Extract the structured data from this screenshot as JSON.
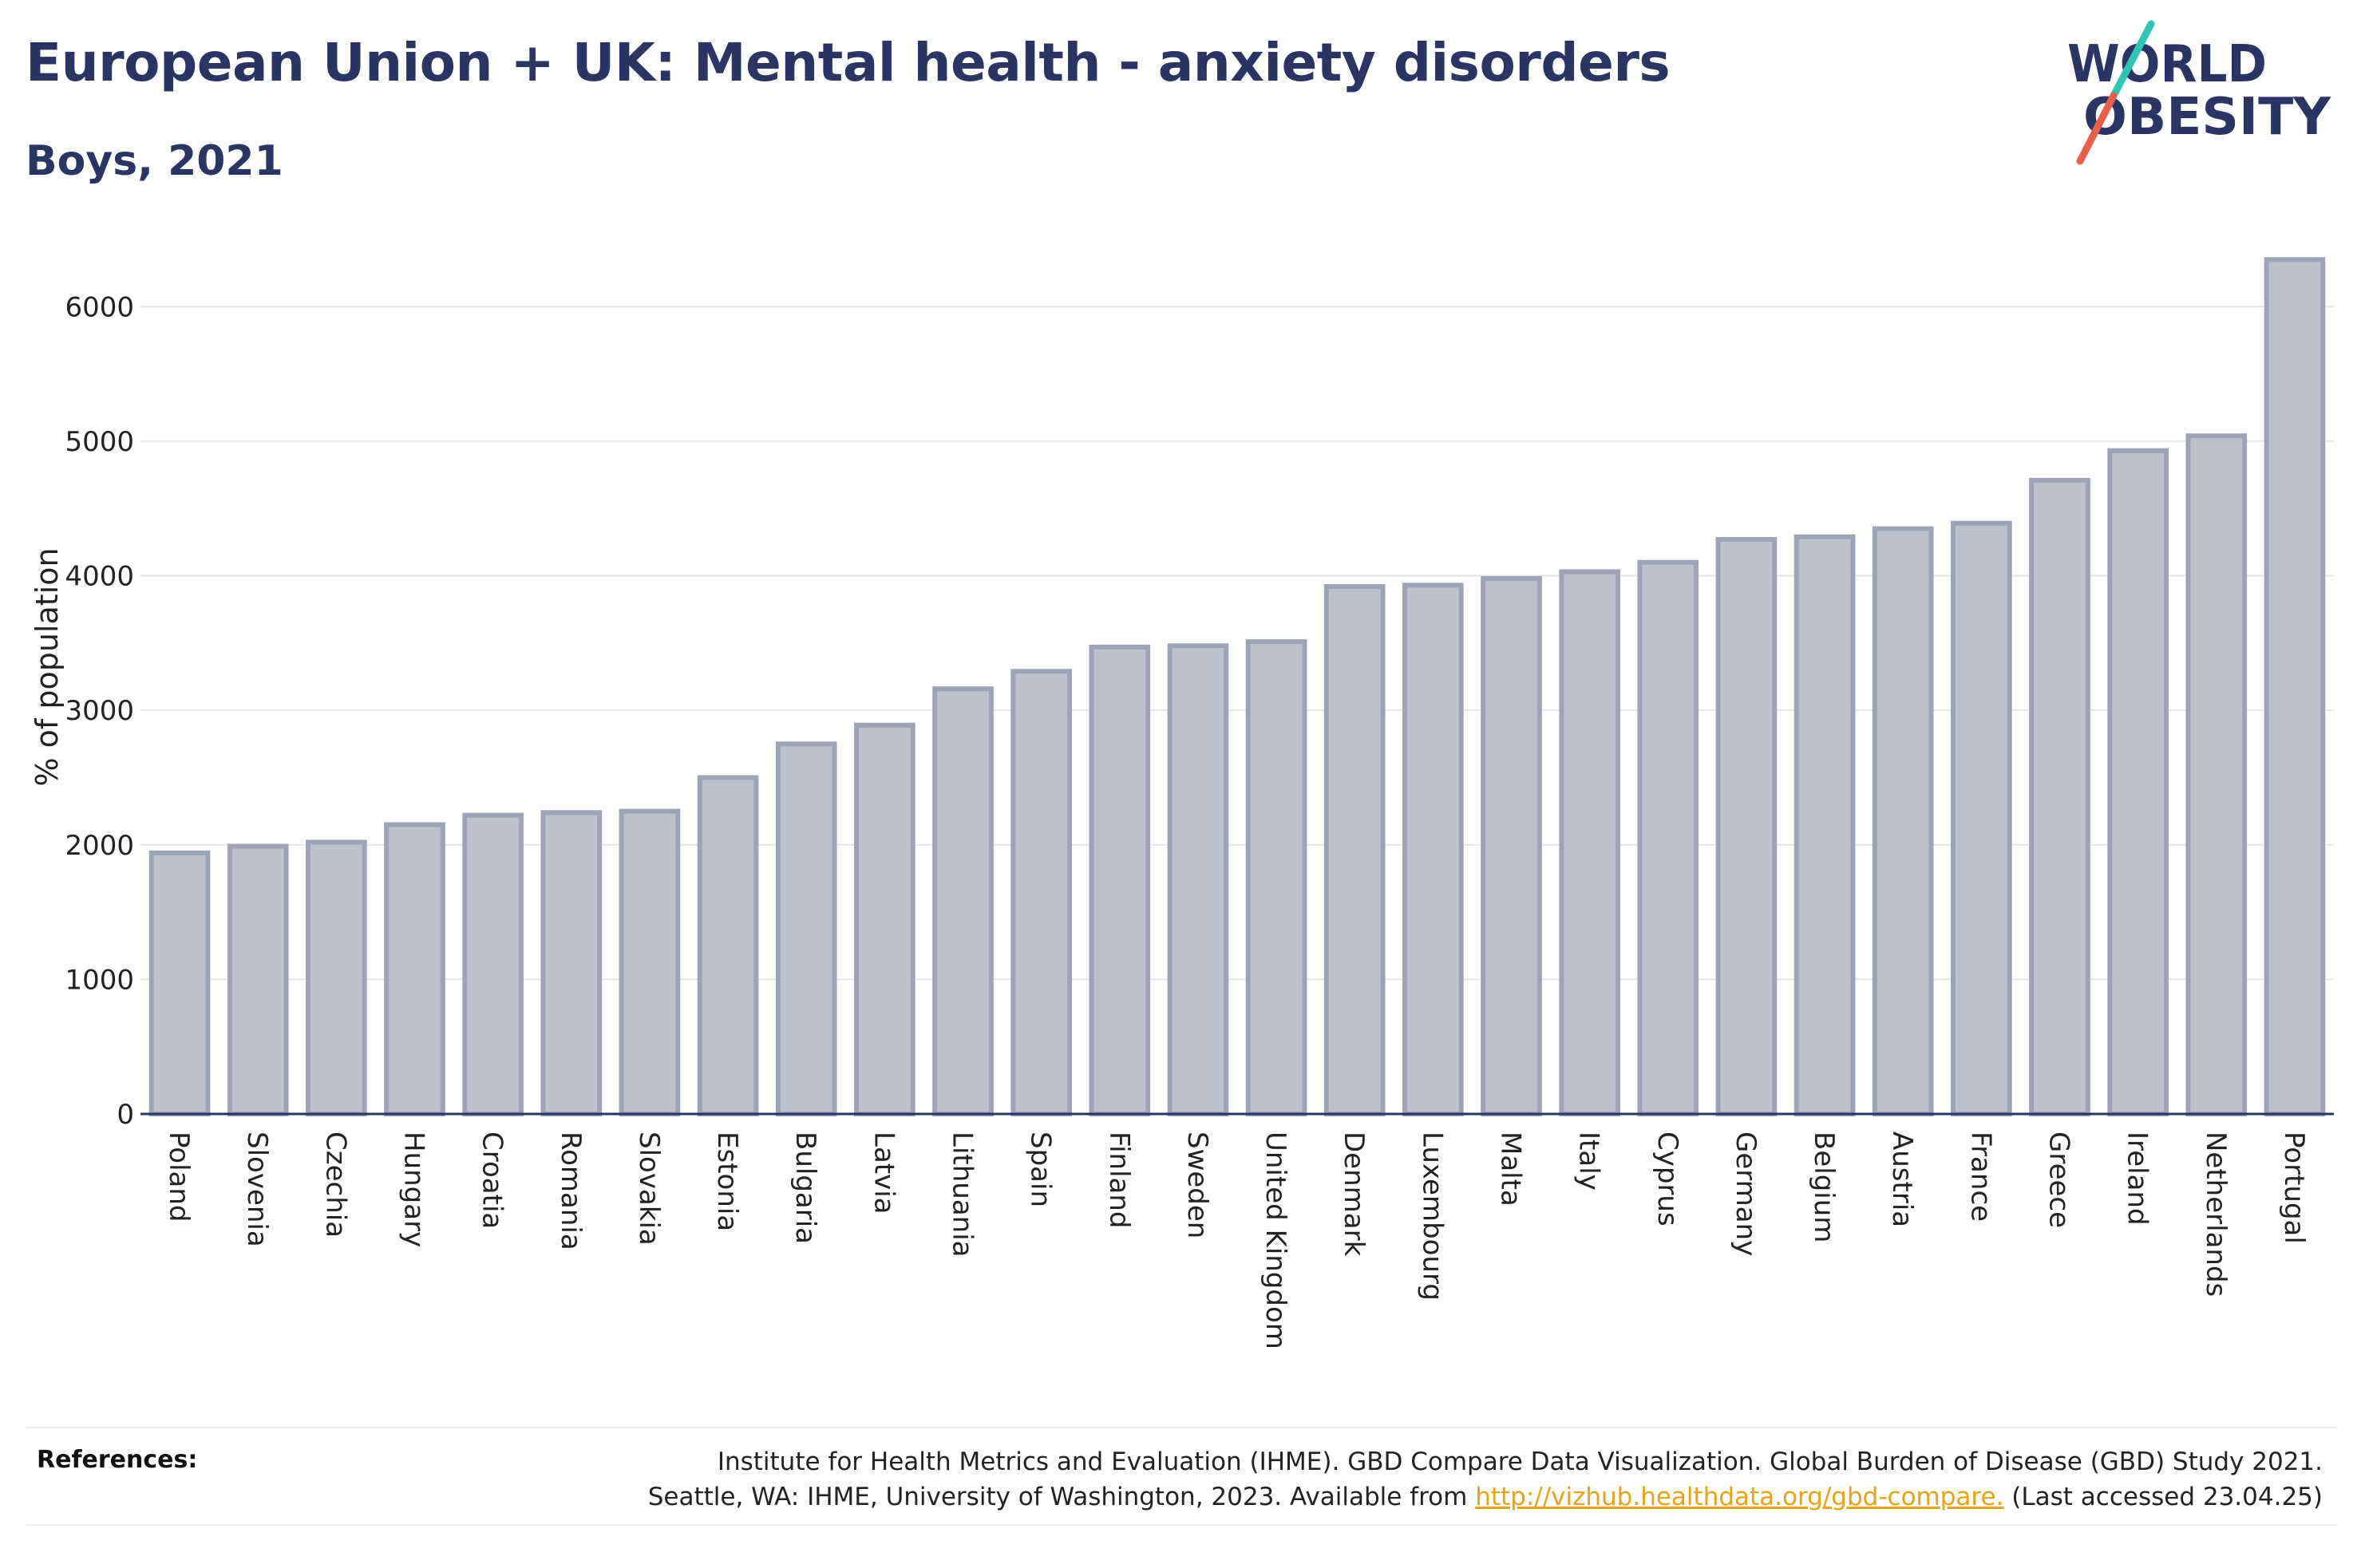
{
  "header": {
    "title": "European Union + UK: Mental health - anxiety disorders",
    "subtitle": "Boys, 2021"
  },
  "logo": {
    "line1": "WORLD",
    "line2": "OBESITY",
    "text_color": "#2b3564",
    "slash_colors": [
      "#2ec4b6",
      "#e8604c"
    ]
  },
  "colors": {
    "bar_fill": "#bec2cf",
    "bar_stroke": "#9ea4b8",
    "grid": "#e6e6e6",
    "axis": "#2b3564"
  },
  "chart_data": {
    "type": "bar",
    "title": "European Union + UK: Mental health - anxiety disorders",
    "subtitle": "Boys, 2021",
    "xlabel": "",
    "ylabel": "% of population",
    "ylim": [
      0,
      6500
    ],
    "yticks": [
      0,
      1000,
      2000,
      3000,
      4000,
      5000,
      6000
    ],
    "grid": true,
    "categories": [
      "Poland",
      "Slovenia",
      "Czechia",
      "Hungary",
      "Croatia",
      "Romania",
      "Slovakia",
      "Estonia",
      "Bulgaria",
      "Latvia",
      "Lithuania",
      "Spain",
      "Finland",
      "Sweden",
      "United Kingdom",
      "Denmark",
      "Luxembourg",
      "Malta",
      "Italy",
      "Cyprus",
      "Germany",
      "Belgium",
      "Austria",
      "France",
      "Greece",
      "Ireland",
      "Netherlands",
      "Portugal"
    ],
    "values": [
      1940,
      1990,
      2020,
      2150,
      2220,
      2240,
      2250,
      2500,
      2750,
      2890,
      3160,
      3290,
      3470,
      3480,
      3510,
      3920,
      3930,
      3980,
      4030,
      4100,
      4270,
      4290,
      4350,
      4390,
      4710,
      4930,
      5040,
      6350
    ]
  },
  "footer": {
    "references_label": "References:",
    "ref_line1": "Institute for Health Metrics and Evaluation (IHME). GBD Compare Data Visualization. Global Burden of Disease (GBD) Study 2021.",
    "ref_line2_pre": "Seattle, WA: IHME, University of Washington, 2023. Available from",
    "ref_link": "http://vizhub.healthdata.org/gbd-compare.",
    "ref_line2_post": "(Last accessed 23.04.25)"
  }
}
